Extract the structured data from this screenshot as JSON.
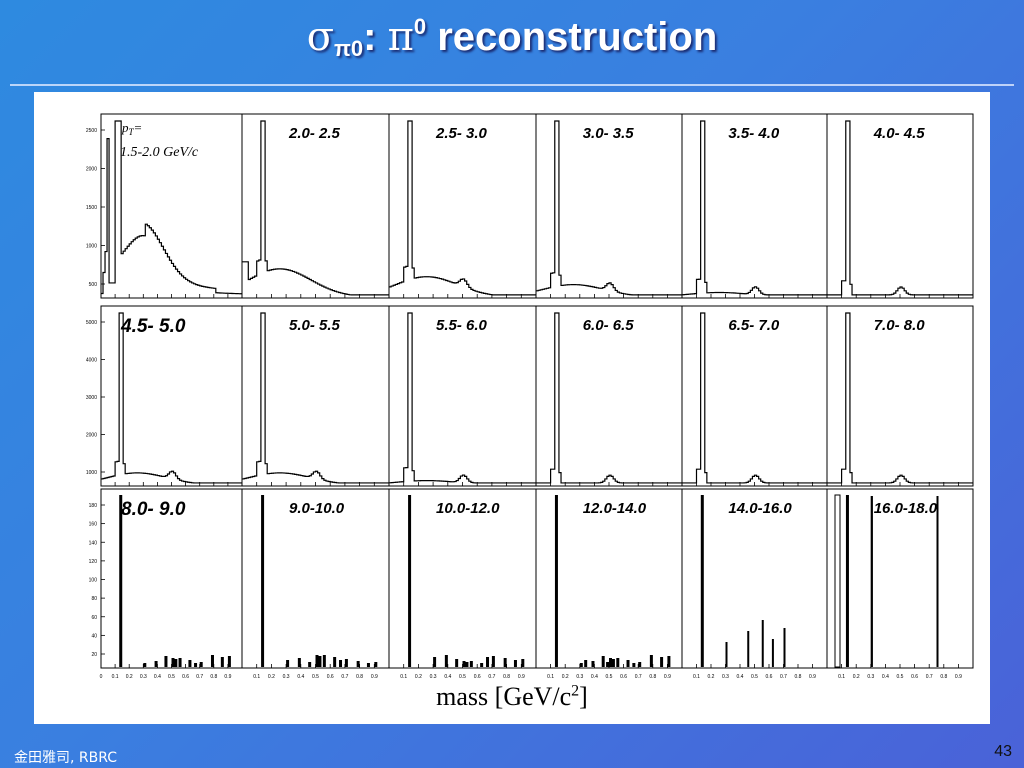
{
  "slide": {
    "title_sym1": "σ",
    "title_sub": "π0",
    "title_colon": ":",
    "title_sym2": "π",
    "title_sup": "0",
    "title_rest": "reconstruction",
    "footer_left": "金田雅司, RBRC",
    "page_number": "43"
  },
  "chart_data": {
    "type": "line",
    "xlabel_main": "mass [GeV/c",
    "xlabel_sup": "2",
    "xlabel_end": "]",
    "first_panel_label_line1": "p",
    "first_panel_label_sub": "T",
    "first_panel_label_line1_end": "=",
    "first_panel_label_line2": "1.5-2.0 GeV/c",
    "panels": [
      {
        "label": "",
        "row": 0,
        "yticks": [
          "2500",
          "2000",
          "1500",
          "1000",
          "500"
        ]
      },
      {
        "label": "2.0- 2.5",
        "row": 0
      },
      {
        "label": "2.5- 3.0",
        "row": 0
      },
      {
        "label": "3.0- 3.5",
        "row": 0
      },
      {
        "label": "3.5- 4.0",
        "row": 0
      },
      {
        "label": "4.0- 4.5",
        "row": 0
      },
      {
        "label": "4.5- 5.0",
        "row": 1,
        "yticks": [
          "5000",
          "4000",
          "3000",
          "2000",
          "1000"
        ]
      },
      {
        "label": "5.0- 5.5",
        "row": 1
      },
      {
        "label": "5.5- 6.0",
        "row": 1
      },
      {
        "label": "6.0- 6.5",
        "row": 1
      },
      {
        "label": "6.5- 7.0",
        "row": 1
      },
      {
        "label": "7.0- 8.0",
        "row": 1
      },
      {
        "label": "8.0- 9.0",
        "row": 2,
        "yticks": [
          "180",
          "160",
          "140",
          "120",
          "100",
          "80",
          "60",
          "40",
          "20"
        ]
      },
      {
        "label": "9.0-10.0",
        "row": 2
      },
      {
        "label": "10.0-12.0",
        "row": 2
      },
      {
        "label": "12.0-14.0",
        "row": 2
      },
      {
        "label": "14.0-16.0",
        "row": 2
      },
      {
        "label": "16.0-18.0",
        "row": 2
      }
    ],
    "first_panel_xticks": [
      "0",
      "0.1",
      "0.2",
      "0.3",
      "0.4",
      "0.5",
      "0.6",
      "0.7",
      "0.8",
      "0.9"
    ],
    "other_panel_xticks": [
      "0.1",
      "0.2",
      "0.3",
      "0.4",
      "0.5",
      "0.6",
      "0.7",
      "0.8",
      "0.9"
    ]
  }
}
